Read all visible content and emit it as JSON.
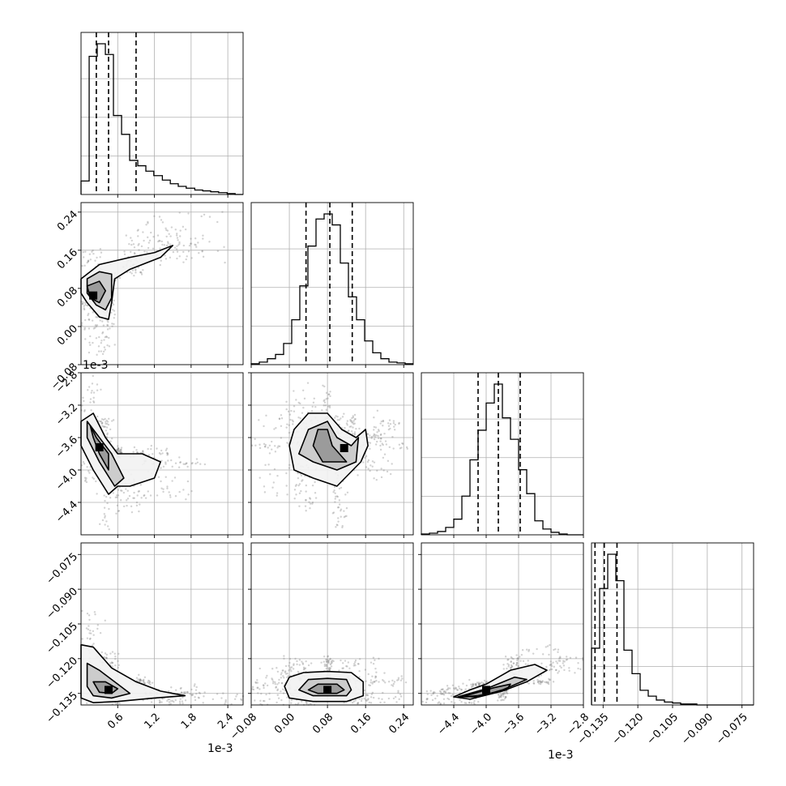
{
  "chart_data": {
    "type": "corner",
    "n_params": 4,
    "offset_labels": [
      "1e-3",
      "",
      "1e-3",
      ""
    ],
    "axis_ranges": [
      [
        0.0,
        0.00265
      ],
      [
        -0.08,
        0.26
      ],
      [
        -0.0048,
        -0.0028
      ],
      [
        -0.14,
        -0.07
      ]
    ],
    "ticks": [
      {
        "values": [
          0.0006,
          0.0012,
          0.0018,
          0.0024
        ],
        "labels": [
          "0.6",
          "1.2",
          "1.8",
          "2.4"
        ]
      },
      {
        "values": [
          -0.08,
          0.0,
          0.08,
          0.16,
          0.24
        ],
        "labels": [
          "−0.08",
          "0.00",
          "0.08",
          "0.16",
          "0.24"
        ]
      },
      {
        "values": [
          -0.0044,
          -0.004,
          -0.0036,
          -0.0032,
          -0.0028
        ],
        "labels": [
          "−4.4",
          "−4.0",
          "−3.6",
          "−3.2",
          "−2.8"
        ]
      },
      {
        "values": [
          -0.135,
          -0.12,
          -0.105,
          -0.09,
          -0.075
        ],
        "labels": [
          "−0.135",
          "−0.120",
          "−0.105",
          "−0.090",
          "−0.075"
        ]
      }
    ],
    "histograms": [
      {
        "param": 0,
        "bins": [
          0.0,
          0.000133,
          0.000265,
          0.000398,
          0.00053,
          0.000663,
          0.000795,
          0.000928,
          0.00106,
          0.00119,
          0.00133,
          0.00146,
          0.00159,
          0.00172,
          0.00186,
          0.00199,
          0.00212,
          0.00225,
          0.00239,
          0.00252,
          0.00265
        ],
        "counts": [
          15,
          154,
          168,
          156,
          88,
          67,
          38,
          32,
          26,
          21,
          16,
          12,
          9,
          7,
          5,
          4,
          3,
          2,
          1,
          0
        ],
        "quantiles": [
          0.00025,
          0.00045,
          0.0009
        ]
      },
      {
        "param": 1,
        "bins": [
          -0.08,
          -0.063,
          -0.046,
          -0.029,
          -0.012,
          0.005,
          0.022,
          0.039,
          0.056,
          0.073,
          0.09,
          0.107,
          0.124,
          0.141,
          0.158,
          0.175,
          0.192,
          0.209,
          0.226,
          0.243,
          0.26
        ],
        "counts": [
          1,
          3,
          7,
          12,
          25,
          53,
          93,
          140,
          172,
          178,
          165,
          120,
          80,
          53,
          28,
          14,
          7,
          3,
          2,
          1
        ],
        "quantiles": [
          0.035,
          0.085,
          0.132
        ]
      },
      {
        "param": 2,
        "bins": [
          -0.0048,
          -0.0047,
          -0.0046,
          -0.0045,
          -0.0044,
          -0.0043,
          -0.0042,
          -0.0041,
          -0.004,
          -0.0039,
          -0.0038,
          -0.0037,
          -0.0036,
          -0.0035,
          -0.0034,
          -0.0033,
          -0.0032,
          -0.0031,
          -0.003,
          -0.0029,
          -0.0028
        ],
        "counts": [
          1,
          2,
          4,
          9,
          19,
          47,
          91,
          127,
          160,
          183,
          142,
          116,
          79,
          50,
          17,
          7,
          3,
          1,
          0,
          0
        ],
        "quantiles": [
          -0.0041,
          -0.00385,
          -0.00358
        ]
      },
      {
        "param": 3,
        "bins": [
          -0.14,
          -0.1365,
          -0.133,
          -0.1295,
          -0.126,
          -0.1225,
          -0.119,
          -0.1155,
          -0.112,
          -0.1085,
          -0.105,
          -0.1015,
          -0.098,
          -0.0945,
          -0.091,
          -0.0875,
          -0.084,
          -0.0805,
          -0.077,
          -0.0735,
          -0.07
        ],
        "counts": [
          58,
          119,
          154,
          127,
          56,
          32,
          15,
          9,
          5,
          3,
          2,
          1,
          1,
          0,
          0,
          0,
          0,
          0,
          0,
          0
        ],
        "quantiles": [
          -0.1385,
          -0.1345,
          -0.129
        ]
      }
    ],
    "pairs": [
      {
        "x_param": 0,
        "y_param": 1,
        "peak": [
          0.0002,
          0.065
        ],
        "contours": [
          [
            [
              0.0,
              0.1
            ],
            [
              0.0003,
              0.13
            ],
            [
              0.0008,
              0.145
            ],
            [
              0.0012,
              0.155
            ],
            [
              0.0015,
              0.17
            ],
            [
              0.0013,
              0.145
            ],
            [
              0.0008,
              0.12
            ],
            [
              0.00055,
              0.1
            ],
            [
              0.0005,
              0.05
            ],
            [
              0.00045,
              0.015
            ],
            [
              0.0003,
              0.02
            ],
            [
              0.0001,
              0.05
            ],
            [
              0.0,
              0.07
            ]
          ],
          [
            [
              0.0001,
              0.1
            ],
            [
              0.0003,
              0.115
            ],
            [
              0.0005,
              0.11
            ],
            [
              0.0005,
              0.06
            ],
            [
              0.0004,
              0.035
            ],
            [
              0.00025,
              0.045
            ],
            [
              0.0001,
              0.07
            ]
          ],
          [
            [
              0.0001,
              0.085
            ],
            [
              0.0003,
              0.095
            ],
            [
              0.0004,
              0.075
            ],
            [
              0.0003,
              0.05
            ],
            [
              0.00015,
              0.06
            ]
          ]
        ]
      },
      {
        "x_param": 0,
        "y_param": 2,
        "peak": [
          0.0003,
          -0.00372
        ],
        "contours": [
          [
            [
              0.0,
              -0.0034
            ],
            [
              0.0002,
              -0.0033
            ],
            [
              0.0004,
              -0.0036
            ],
            [
              0.0006,
              -0.0038
            ],
            [
              0.001,
              -0.0038
            ],
            [
              0.0013,
              -0.0039
            ],
            [
              0.0012,
              -0.0041
            ],
            [
              0.0008,
              -0.0042
            ],
            [
              0.0006,
              -0.0042
            ],
            [
              0.00045,
              -0.0043
            ],
            [
              0.0002,
              -0.004
            ],
            [
              0.0,
              -0.0037
            ]
          ],
          [
            [
              0.0001,
              -0.0034
            ],
            [
              0.0003,
              -0.0036
            ],
            [
              0.0005,
              -0.0038
            ],
            [
              0.0007,
              -0.0041
            ],
            [
              0.00055,
              -0.0042
            ],
            [
              0.0003,
              -0.0039
            ],
            [
              0.0001,
              -0.0036
            ]
          ],
          [
            [
              0.00015,
              -0.00345
            ],
            [
              0.00025,
              -0.0036
            ],
            [
              0.00045,
              -0.0038
            ],
            [
              0.00045,
              -0.004
            ],
            [
              0.0003,
              -0.0038
            ],
            [
              0.0002,
              -0.0036
            ]
          ]
        ]
      },
      {
        "x_param": 0,
        "y_param": 3,
        "peak": [
          0.00045,
          -0.1335
        ],
        "contours": [
          [
            [
              0.0,
              -0.114
            ],
            [
              0.0002,
              -0.115
            ],
            [
              0.0005,
              -0.124
            ],
            [
              0.0009,
              -0.13
            ],
            [
              0.0013,
              -0.134
            ],
            [
              0.0017,
              -0.136
            ],
            [
              0.0012,
              -0.137
            ],
            [
              0.0006,
              -0.1385
            ],
            [
              0.0002,
              -0.139
            ],
            [
              0.0,
              -0.137
            ]
          ],
          [
            [
              0.0001,
              -0.122
            ],
            [
              0.0003,
              -0.125
            ],
            [
              0.0006,
              -0.131
            ],
            [
              0.0008,
              -0.135
            ],
            [
              0.0005,
              -0.137
            ],
            [
              0.0002,
              -0.136
            ],
            [
              0.0001,
              -0.132
            ]
          ],
          [
            [
              0.0002,
              -0.13
            ],
            [
              0.0004,
              -0.13
            ],
            [
              0.0006,
              -0.133
            ],
            [
              0.0005,
              -0.135
            ],
            [
              0.0003,
              -0.1345
            ]
          ]
        ]
      },
      {
        "x_param": 1,
        "y_param": 2,
        "peak": [
          0.115,
          -0.00373
        ],
        "contours": [
          [
            [
              0.0,
              -0.0037
            ],
            [
              0.01,
              -0.0035
            ],
            [
              0.04,
              -0.0033
            ],
            [
              0.08,
              -0.0033
            ],
            [
              0.11,
              -0.0035
            ],
            [
              0.14,
              -0.0036
            ],
            [
              0.16,
              -0.0035
            ],
            [
              0.165,
              -0.0037
            ],
            [
              0.15,
              -0.0039
            ],
            [
              0.1,
              -0.0042
            ],
            [
              0.05,
              -0.0041
            ],
            [
              0.01,
              -0.004
            ]
          ],
          [
            [
              0.02,
              -0.0038
            ],
            [
              0.04,
              -0.0035
            ],
            [
              0.08,
              -0.0034
            ],
            [
              0.1,
              -0.0036
            ],
            [
              0.13,
              -0.0037
            ],
            [
              0.145,
              -0.0036
            ],
            [
              0.14,
              -0.0039
            ],
            [
              0.1,
              -0.004
            ],
            [
              0.05,
              -0.0039
            ]
          ],
          [
            [
              0.05,
              -0.0037
            ],
            [
              0.06,
              -0.0035
            ],
            [
              0.08,
              -0.0035
            ],
            [
              0.09,
              -0.0037
            ],
            [
              0.12,
              -0.0039
            ],
            [
              0.1,
              -0.0039
            ],
            [
              0.07,
              -0.0039
            ]
          ]
        ]
      },
      {
        "x_param": 1,
        "y_param": 3,
        "peak": [
          0.08,
          -0.1335
        ],
        "contours": [
          [
            [
              -0.01,
              -0.132
            ],
            [
              0.0,
              -0.128
            ],
            [
              0.03,
              -0.126
            ],
            [
              0.08,
              -0.1255
            ],
            [
              0.13,
              -0.126
            ],
            [
              0.155,
              -0.13
            ],
            [
              0.155,
              -0.136
            ],
            [
              0.12,
              -0.1385
            ],
            [
              0.05,
              -0.1385
            ],
            [
              0.0,
              -0.137
            ]
          ],
          [
            [
              0.02,
              -0.1335
            ],
            [
              0.04,
              -0.129
            ],
            [
              0.08,
              -0.1285
            ],
            [
              0.12,
              -0.129
            ],
            [
              0.13,
              -0.1335
            ],
            [
              0.12,
              -0.136
            ],
            [
              0.05,
              -0.136
            ]
          ],
          [
            [
              0.04,
              -0.1335
            ],
            [
              0.06,
              -0.131
            ],
            [
              0.1,
              -0.131
            ],
            [
              0.115,
              -0.1335
            ],
            [
              0.1,
              -0.135
            ],
            [
              0.06,
              -0.135
            ]
          ]
        ]
      },
      {
        "x_param": 2,
        "y_param": 3,
        "peak": [
          -0.004,
          -0.1335
        ],
        "contours": [
          [
            [
              -0.0044,
              -0.1365
            ],
            [
              -0.0042,
              -0.1335
            ],
            [
              -0.004,
              -0.131
            ],
            [
              -0.0037,
              -0.125
            ],
            [
              -0.0034,
              -0.1225
            ],
            [
              -0.00325,
              -0.125
            ],
            [
              -0.0035,
              -0.13
            ],
            [
              -0.0038,
              -0.134
            ],
            [
              -0.0042,
              -0.1375
            ]
          ],
          [
            [
              -0.00435,
              -0.1365
            ],
            [
              -0.004,
              -0.133
            ],
            [
              -0.00365,
              -0.128
            ],
            [
              -0.0035,
              -0.129
            ],
            [
              -0.0038,
              -0.1335
            ],
            [
              -0.0041,
              -0.1365
            ]
          ],
          [
            [
              -0.0043,
              -0.1365
            ],
            [
              -0.0041,
              -0.1345
            ],
            [
              -0.0039,
              -0.1325
            ],
            [
              -0.0037,
              -0.131
            ],
            [
              -0.00375,
              -0.1335
            ],
            [
              -0.0041,
              -0.136
            ]
          ]
        ]
      }
    ],
    "colors": {
      "line": "#000000",
      "grid": "#b0b0b0",
      "scatter": "#7f7f7f",
      "density": [
        "#f2f2f2",
        "#c8c8c8",
        "#969696",
        "#4d4d4d",
        "#000000"
      ]
    }
  }
}
